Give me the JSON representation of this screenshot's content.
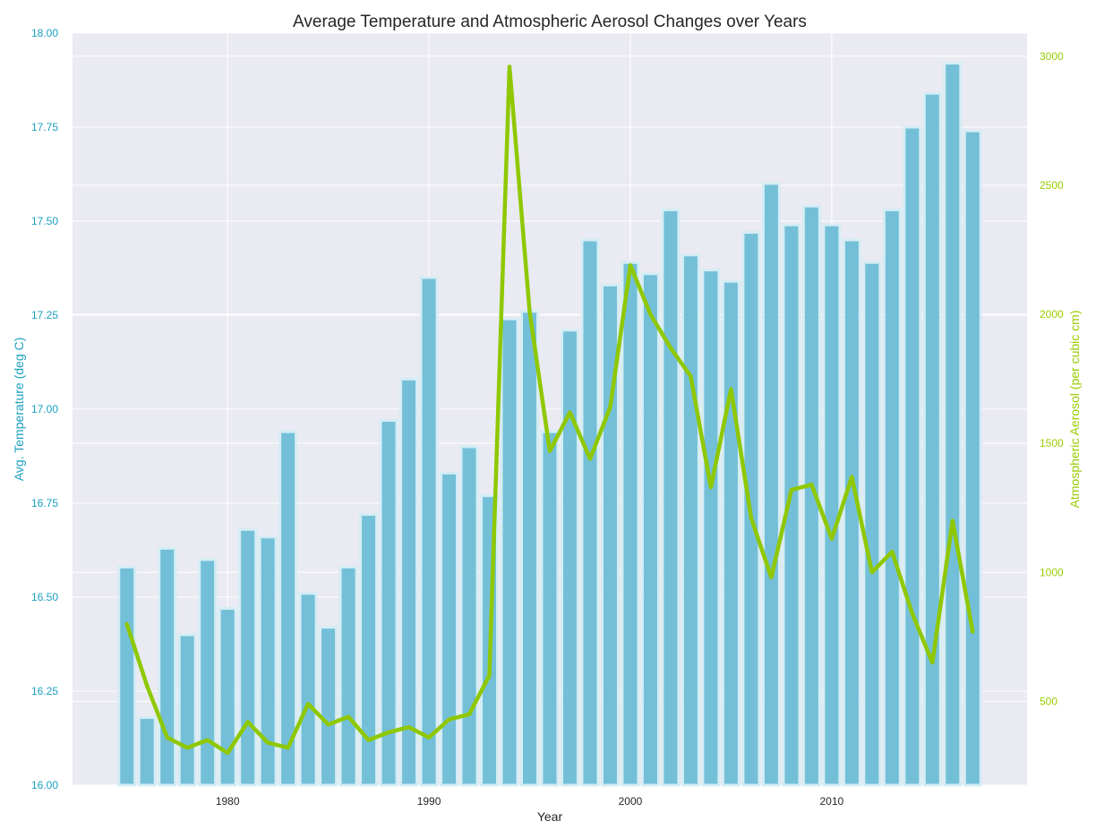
{
  "chart_data": {
    "type": "bar",
    "title": "Average Temperature and Atmospheric Aerosol Changes over Years",
    "xlabel": "Year",
    "ylabel": "Avg. Temperature (deg C)",
    "y2label": "Atmospheric Aerosol (per cubic cm)",
    "xlim": [
      1972.3,
      2019.7
    ],
    "ylim": [
      16.0,
      18.0
    ],
    "y2lim": [
      175,
      3090
    ],
    "x_ticks": [
      1980,
      1990,
      2000,
      2010
    ],
    "y_ticks": [
      16.0,
      16.25,
      16.5,
      16.75,
      17.0,
      17.25,
      17.5,
      17.75,
      18.0
    ],
    "y2_ticks": [
      500,
      1000,
      1500,
      2000,
      2500,
      3000
    ],
    "grid": true,
    "x": [
      1975,
      1976,
      1977,
      1978,
      1979,
      1980,
      1981,
      1982,
      1983,
      1984,
      1985,
      1986,
      1987,
      1988,
      1989,
      1990,
      1991,
      1992,
      1993,
      1994,
      1995,
      1996,
      1997,
      1998,
      1999,
      2000,
      2001,
      2002,
      2003,
      2004,
      2005,
      2006,
      2007,
      2008,
      2009,
      2010,
      2011,
      2012,
      2013,
      2014,
      2015,
      2016,
      2017
    ],
    "series": [
      {
        "name": "Avg. Temperature (deg C)",
        "type": "bar",
        "axis": "left",
        "values": [
          16.58,
          16.18,
          16.63,
          16.4,
          16.6,
          16.47,
          16.68,
          16.66,
          16.94,
          16.51,
          16.42,
          16.58,
          16.72,
          16.97,
          17.08,
          17.35,
          16.83,
          16.9,
          16.77,
          17.24,
          17.26,
          16.94,
          17.21,
          17.45,
          17.33,
          17.39,
          17.36,
          17.53,
          17.41,
          17.37,
          17.34,
          17.47,
          17.6,
          17.49,
          17.54,
          17.49,
          17.45,
          17.39,
          17.53,
          17.75,
          17.84,
          17.92,
          17.74
        ]
      },
      {
        "name": "Atmospheric Aerosol (per cubic cm)",
        "type": "line",
        "axis": "right",
        "values": [
          800,
          560,
          360,
          320,
          350,
          300,
          420,
          340,
          320,
          490,
          410,
          440,
          350,
          380,
          400,
          360,
          430,
          450,
          600,
          2960,
          2010,
          1470,
          1620,
          1440,
          1640,
          2190,
          2000,
          1870,
          1760,
          1330,
          1710,
          1210,
          980,
          1320,
          1340,
          1130,
          1370,
          1000,
          1080,
          840,
          650,
          1200,
          770
        ]
      }
    ]
  },
  "colors": {
    "plot_bg": "#eaeaf2",
    "grid": "#ffffff",
    "bar_fill": "#74bfd8",
    "bar_edge": "#d4edf4",
    "line": "#8fc800",
    "left_axis": "#1a9fbf",
    "right_axis": "#99cc00",
    "text": "#262626"
  }
}
